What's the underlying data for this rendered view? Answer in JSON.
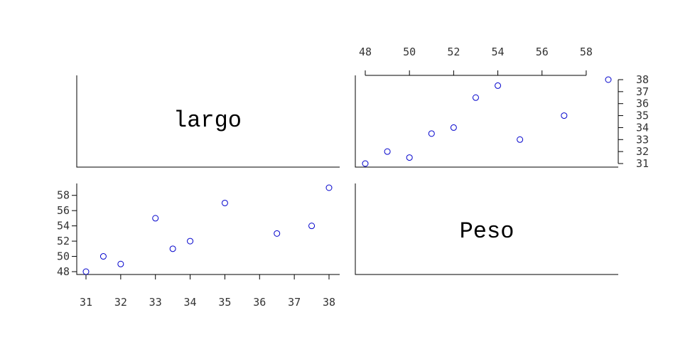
{
  "chart_data": {
    "type": "scatter",
    "plot_kind": "pairs matrix",
    "variables": [
      "largo",
      "Peso"
    ],
    "point_color": "#0000cc",
    "points": [
      {
        "largo": 31,
        "Peso": 48
      },
      {
        "largo": 31.5,
        "Peso": 50
      },
      {
        "largo": 32,
        "Peso": 49
      },
      {
        "largo": 33,
        "Peso": 55
      },
      {
        "largo": 33.5,
        "Peso": 51
      },
      {
        "largo": 34,
        "Peso": 52
      },
      {
        "largo": 35,
        "Peso": 57
      },
      {
        "largo": 36.5,
        "Peso": 53
      },
      {
        "largo": 37.5,
        "Peso": 54
      },
      {
        "largo": 38,
        "Peso": 59
      }
    ],
    "axes": {
      "largo": {
        "range": [
          31,
          38
        ],
        "ticks": [
          "31",
          "32",
          "33",
          "34",
          "35",
          "36",
          "37",
          "38"
        ]
      },
      "Peso": {
        "range": [
          48,
          59
        ],
        "ticks": [
          "48",
          "50",
          "52",
          "54",
          "56",
          "58"
        ]
      }
    }
  }
}
